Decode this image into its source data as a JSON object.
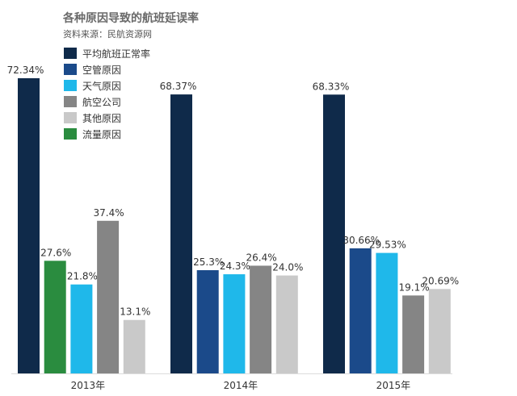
{
  "title": "各种原因导致的航班延误率",
  "source": "资料来源：民航资源网",
  "chart_data": {
    "type": "bar",
    "title": "各种原因导致的航班延误率",
    "categories": [
      "2013年",
      "2014年",
      "2015年"
    ],
    "ylim": [
      0,
      72.34
    ],
    "legend_position": "top-left",
    "grid": false,
    "series": [
      {
        "name": "平均航班正常率",
        "color": "#0f2a4a",
        "values": [
          72.34,
          68.37,
          68.33
        ],
        "labels": [
          "72.34%",
          "68.37%",
          "68.33%"
        ]
      },
      {
        "name": "空管原因",
        "color": "#1b4a8a",
        "values": [
          null,
          25.3,
          30.66
        ],
        "labels": [
          "",
          "25.3%",
          "30.66%"
        ]
      },
      {
        "name": "天气原因",
        "color": "#1fb8ea",
        "values": [
          21.8,
          24.3,
          29.53
        ],
        "labels": [
          "21.8%",
          "24.3%",
          "29.53%"
        ]
      },
      {
        "name": "航空公司",
        "color": "#858585",
        "values": [
          37.4,
          26.4,
          19.1
        ],
        "labels": [
          "37.4%",
          "26.4%",
          "19.1%"
        ]
      },
      {
        "name": "其他原因",
        "color": "#c9c9c9",
        "values": [
          13.1,
          24.0,
          20.69
        ],
        "labels": [
          "13.1%",
          "24.0%",
          "20.69%"
        ]
      },
      {
        "name": "流量原因",
        "color": "#2a8c3f",
        "values": [
          27.6,
          null,
          null
        ],
        "labels": [
          "27.6%",
          "",
          ""
        ]
      }
    ],
    "group_order": [
      [
        0,
        5,
        2,
        3,
        4
      ],
      [
        0,
        1,
        2,
        3,
        4
      ],
      [
        0,
        1,
        2,
        3,
        4
      ]
    ]
  }
}
